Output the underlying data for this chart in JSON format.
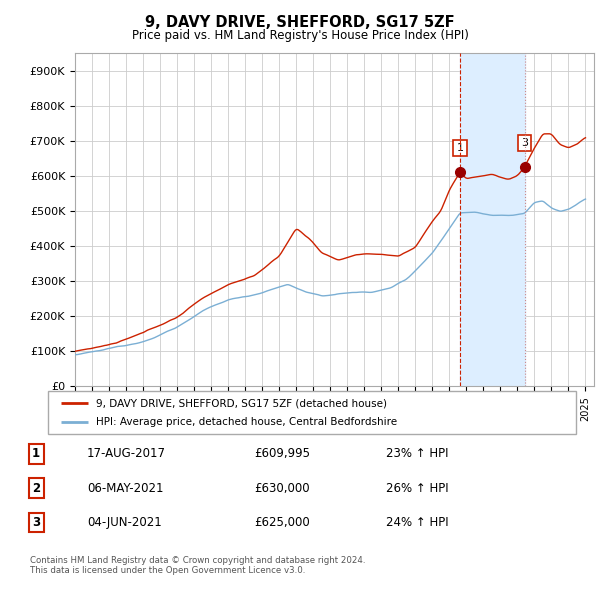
{
  "title": "9, DAVY DRIVE, SHEFFORD, SG17 5ZF",
  "subtitle": "Price paid vs. HM Land Registry's House Price Index (HPI)",
  "ylim": [
    0,
    950000
  ],
  "yticks": [
    0,
    100000,
    200000,
    300000,
    400000,
    500000,
    600000,
    700000,
    800000,
    900000
  ],
  "ytick_labels": [
    "£0",
    "£100K",
    "£200K",
    "£300K",
    "£400K",
    "£500K",
    "£600K",
    "£700K",
    "£800K",
    "£900K"
  ],
  "hpi_color": "#7bafd4",
  "price_color": "#cc2200",
  "vline1_color": "#cc2200",
  "vline2_color": "#cc8888",
  "shade_color": "#ddeeff",
  "marker_color": "#990000",
  "marker1_year": 2017.63,
  "marker1_price": 609995,
  "marker3_year": 2021.42,
  "marker3_price": 625000,
  "legend_label_price": "9, DAVY DRIVE, SHEFFORD, SG17 5ZF (detached house)",
  "legend_label_hpi": "HPI: Average price, detached house, Central Bedfordshire",
  "table_rows": [
    [
      "1",
      "17-AUG-2017",
      "£609,995",
      "23% ↑ HPI"
    ],
    [
      "2",
      "06-MAY-2021",
      "£630,000",
      "26% ↑ HPI"
    ],
    [
      "3",
      "04-JUN-2021",
      "£625,000",
      "24% ↑ HPI"
    ]
  ],
  "footnote": "Contains HM Land Registry data © Crown copyright and database right 2024.\nThis data is licensed under the Open Government Licence v3.0.",
  "grid_color": "#cccccc"
}
